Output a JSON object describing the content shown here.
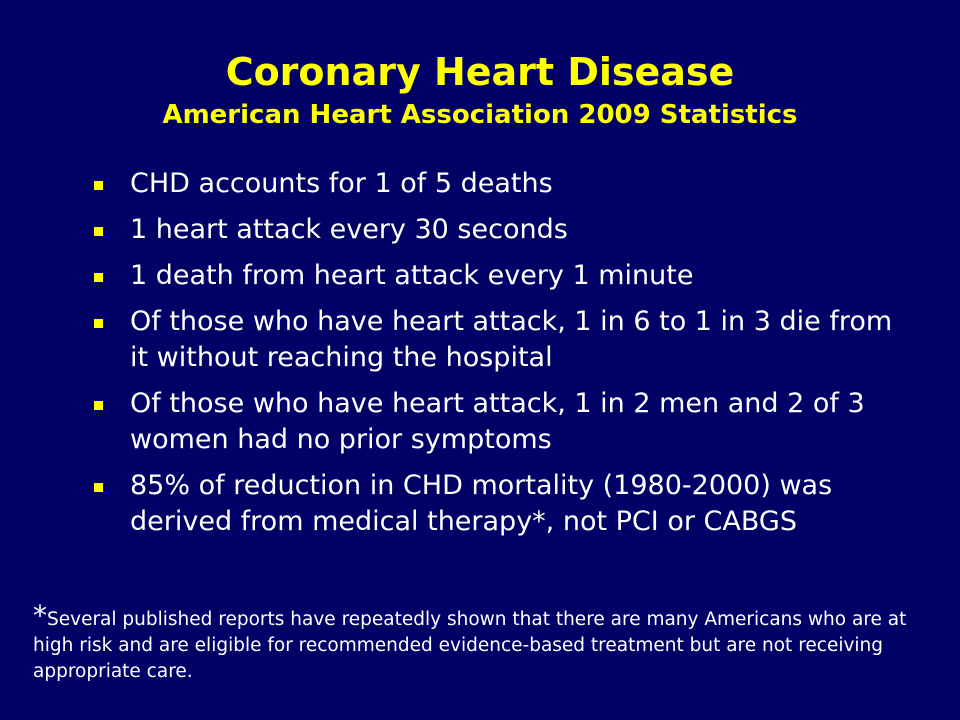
{
  "slide": {
    "title": "Coronary Heart Disease",
    "subtitle": "American Heart Association 2009 Statistics",
    "bullets": [
      "CHD accounts for 1 of 5 deaths",
      "1 heart attack every 30 seconds",
      "1 death from heart attack every 1 minute",
      "Of those who have heart attack, 1 in 6 to 1 in 3 die from it without reaching the hospital",
      "Of those who have heart attack, 1 in 2 men and 2 of 3 women had no prior symptoms",
      "85% of reduction in CHD mortality (1980-2000) was derived from medical therapy*, not PCI or CABGS"
    ],
    "footnote": {
      "marker": "*",
      "text": "Several published reports have repeatedly shown that there are many Americans who are at high risk and are eligible for recommended evidence-based treatment but are not receiving appropriate care."
    },
    "colors": {
      "background": "#000066",
      "heading": "#FFFF00",
      "body_text": "#FFFFFF",
      "bullet_marker": "#FFFF00"
    }
  }
}
